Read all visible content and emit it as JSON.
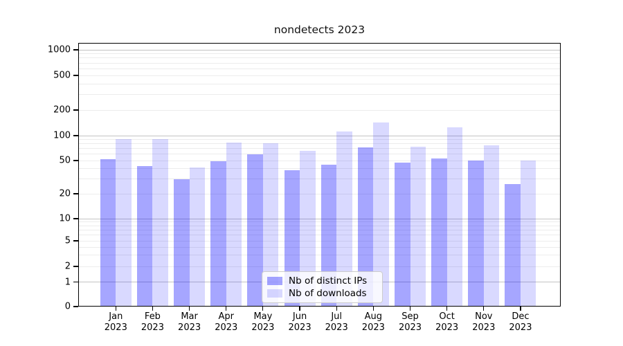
{
  "chart_data": {
    "type": "bar",
    "title": "nondetects 2023",
    "categories": [
      {
        "month": "Jan",
        "year": "2023"
      },
      {
        "month": "Feb",
        "year": "2023"
      },
      {
        "month": "Mar",
        "year": "2023"
      },
      {
        "month": "Apr",
        "year": "2023"
      },
      {
        "month": "May",
        "year": "2023"
      },
      {
        "month": "Jun",
        "year": "2023"
      },
      {
        "month": "Jul",
        "year": "2023"
      },
      {
        "month": "Aug",
        "year": "2023"
      },
      {
        "month": "Sep",
        "year": "2023"
      },
      {
        "month": "Oct",
        "year": "2023"
      },
      {
        "month": "Nov",
        "year": "2023"
      },
      {
        "month": "Dec",
        "year": "2023"
      }
    ],
    "series": [
      {
        "name": "Nb of distinct IPs",
        "color": "rgba(0,0,255,0.35)",
        "color_on_white": "#a6a6ff",
        "values": [
          52,
          43,
          30,
          49,
          60,
          38,
          45,
          72,
          47,
          53,
          50,
          26
        ]
      },
      {
        "name": "Nb of downloads",
        "color": "rgba(0,0,255,0.15)",
        "color_on_white": "#d9d9ff",
        "values": [
          90,
          90,
          41,
          82,
          81,
          65,
          111,
          143,
          73,
          126,
          77,
          50
        ]
      }
    ],
    "xlabel": "",
    "ylabel": "",
    "yticks": [
      0,
      1,
      2,
      5,
      10,
      20,
      50,
      100,
      200,
      500,
      1000
    ],
    "yscale": "log above 1, linear 0-1",
    "ylim": [
      0,
      1000
    ],
    "grid": true,
    "legend_position": "lower center"
  },
  "colors": {
    "grid_major": "#c3c3c3",
    "grid_minor": "#ececec",
    "spine": "#000000",
    "background": "#ffffff"
  }
}
